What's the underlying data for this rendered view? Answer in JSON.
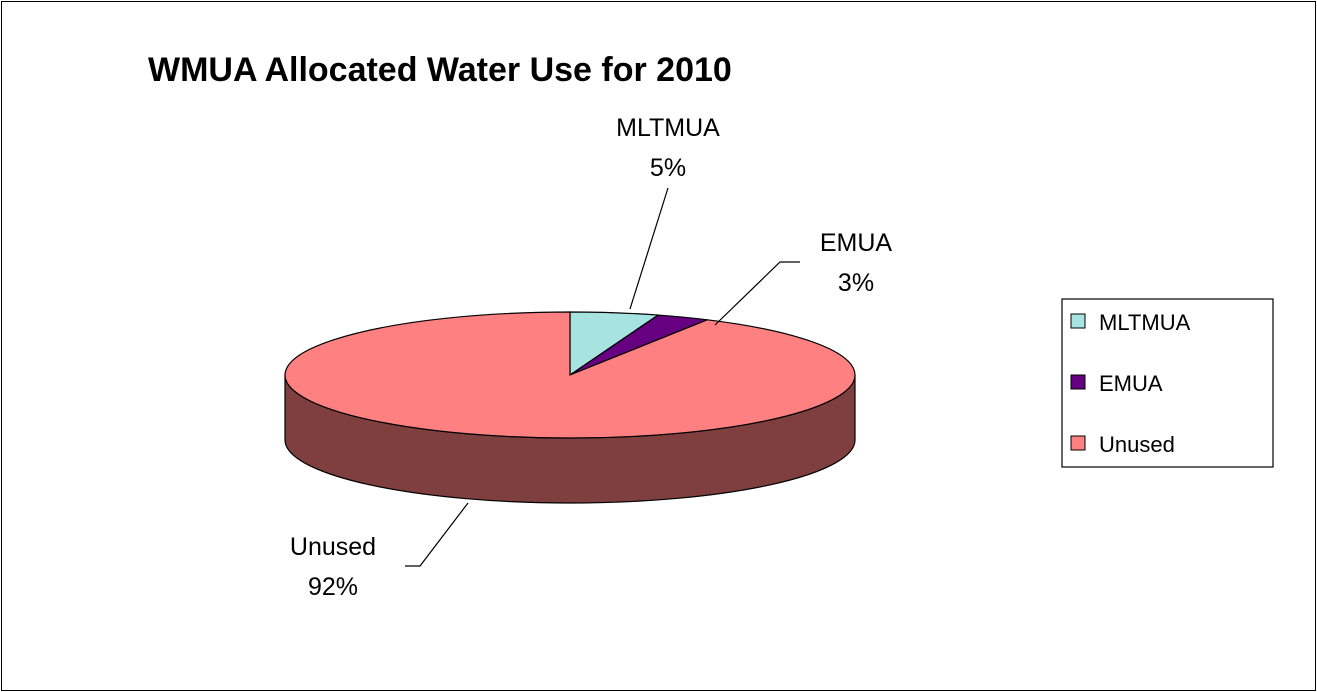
{
  "chart_data": {
    "type": "pie",
    "title": "WMUA Allocated Water Use for 2010",
    "categories": [
      "MLTMUA",
      "EMUA",
      "Unused"
    ],
    "values": [
      5,
      3,
      92
    ],
    "data_labels": [
      {
        "name": "MLTMUA",
        "pct": "5%"
      },
      {
        "name": "EMUA",
        "pct": "3%"
      },
      {
        "name": "Unused",
        "pct": "92%"
      }
    ],
    "colors": [
      "#a6e3e1",
      "#660080",
      "#ff8080"
    ],
    "side_colors": [
      "#5e8b8a",
      "#3d004d",
      "#803f3f"
    ],
    "legend": {
      "position": "right",
      "entries": [
        "MLTMUA",
        "EMUA",
        "Unused"
      ]
    },
    "style": "3d"
  }
}
